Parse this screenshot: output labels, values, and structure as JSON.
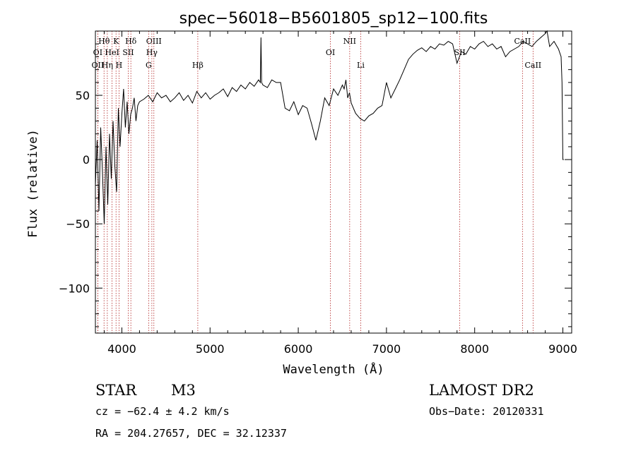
{
  "chart_data": {
    "type": "line",
    "title": "spec−56018−B5601805_sp12−100.fits",
    "xlabel": "Wavelength (Å)",
    "ylabel": "Flux (relative)",
    "xlim": [
      3700,
      9100
    ],
    "ylim": [
      -135,
      100
    ],
    "grid": false,
    "xticks": [
      {
        "v": 4000,
        "label": "4000"
      },
      {
        "v": 5000,
        "label": "5000"
      },
      {
        "v": 6000,
        "label": "6000"
      },
      {
        "v": 7000,
        "label": "7000"
      },
      {
        "v": 8000,
        "label": "8000"
      },
      {
        "v": 9000,
        "label": "9000"
      }
    ],
    "yticks": [
      {
        "v": 50,
        "label": "50"
      },
      {
        "v": 0,
        "label": "0"
      },
      {
        "v": -50,
        "label": "−50"
      },
      {
        "v": -100,
        "label": "−100"
      }
    ],
    "series": [
      {
        "color": "#000000",
        "x": [
          3700,
          3720,
          3740,
          3760,
          3780,
          3800,
          3820,
          3840,
          3860,
          3880,
          3900,
          3920,
          3940,
          3960,
          3980,
          4000,
          4020,
          4040,
          4060,
          4080,
          4100,
          4120,
          4140,
          4160,
          4180,
          4200,
          4250,
          4300,
          4350,
          4400,
          4450,
          4500,
          4550,
          4600,
          4650,
          4700,
          4750,
          4800,
          4850,
          4900,
          4950,
          5000,
          5050,
          5100,
          5150,
          5200,
          5250,
          5300,
          5350,
          5400,
          5450,
          5500,
          5550,
          5570,
          5577,
          5584,
          5600,
          5650,
          5700,
          5750,
          5800,
          5850,
          5900,
          5950,
          6000,
          6050,
          6100,
          6150,
          6200,
          6250,
          6300,
          6350,
          6400,
          6450,
          6500,
          6520,
          6540,
          6560,
          6580,
          6600,
          6650,
          6700,
          6750,
          6800,
          6850,
          6900,
          6950,
          7000,
          7050,
          7100,
          7150,
          7200,
          7250,
          7300,
          7350,
          7400,
          7450,
          7500,
          7550,
          7600,
          7650,
          7700,
          7750,
          7800,
          7850,
          7900,
          7950,
          8000,
          8050,
          8100,
          8150,
          8200,
          8250,
          8300,
          8350,
          8400,
          8450,
          8500,
          8550,
          8600,
          8650,
          8700,
          8750,
          8800,
          8820,
          8850,
          8900,
          8950,
          8980,
          8990,
          9000,
          9005,
          9010
        ],
        "y": [
          -20,
          15,
          -40,
          25,
          -10,
          -50,
          10,
          -35,
          20,
          -15,
          30,
          -5,
          -25,
          40,
          10,
          35,
          55,
          25,
          45,
          20,
          35,
          40,
          48,
          30,
          42,
          45,
          47,
          50,
          45,
          52,
          48,
          50,
          45,
          48,
          52,
          46,
          50,
          44,
          53,
          48,
          52,
          47,
          50,
          52,
          55,
          49,
          56,
          53,
          58,
          55,
          60,
          57,
          62,
          60,
          95,
          60,
          58,
          56,
          62,
          60,
          60,
          40,
          38,
          45,
          35,
          42,
          40,
          28,
          15,
          30,
          48,
          42,
          55,
          50,
          58,
          55,
          62,
          48,
          52,
          44,
          36,
          32,
          30,
          34,
          36,
          40,
          42,
          60,
          48,
          55,
          62,
          70,
          78,
          82,
          85,
          87,
          84,
          88,
          86,
          90,
          89,
          92,
          90,
          75,
          84,
          82,
          88,
          86,
          90,
          92,
          88,
          90,
          86,
          88,
          80,
          84,
          86,
          88,
          92,
          90,
          88,
          92,
          95,
          98,
          100,
          88,
          92,
          86,
          80,
          60,
          0,
          0,
          0
        ]
      }
    ],
    "line_markers": [
      {
        "label": "Hθ",
        "x": 3798,
        "row": "top"
      },
      {
        "label": "K",
        "x": 3934,
        "row": "top"
      },
      {
        "label": "Hδ",
        "x": 4102,
        "row": "top"
      },
      {
        "label": "OIII",
        "x": 4363,
        "row": "top"
      },
      {
        "label": "NII",
        "x": 6583,
        "row": "top"
      },
      {
        "label": "CaII",
        "x": 8542,
        "row": "top"
      },
      {
        "label": "OI",
        "x": 3727,
        "row": "mid"
      },
      {
        "label": "HeI",
        "x": 3889,
        "row": "mid"
      },
      {
        "label": "SII",
        "x": 4072,
        "row": "mid"
      },
      {
        "label": "Hγ",
        "x": 4340,
        "row": "mid"
      },
      {
        "label": "OI",
        "x": 6364,
        "row": "mid"
      },
      {
        "label": "SII",
        "x": 7831,
        "row": "mid"
      },
      {
        "label": "OII",
        "x": 3727,
        "row": "low"
      },
      {
        "label": "Hη",
        "x": 3835,
        "row": "low"
      },
      {
        "label": "H",
        "x": 3968,
        "row": "low"
      },
      {
        "label": "G",
        "x": 4304,
        "row": "low"
      },
      {
        "label": "Hβ",
        "x": 4861,
        "row": "low"
      },
      {
        "label": "Li",
        "x": 6708,
        "row": "low"
      },
      {
        "label": "CaII",
        "x": 8662,
        "row": "low"
      }
    ]
  },
  "info": {
    "object_class": "STAR",
    "subclass": "M3",
    "survey": "LAMOST DR2",
    "cz": "cz = −62.4 ± 4.2 km/s",
    "obs_date": "Obs−Date: 20120331",
    "coords": "RA = 204.27657, DEC =  32.12337"
  }
}
